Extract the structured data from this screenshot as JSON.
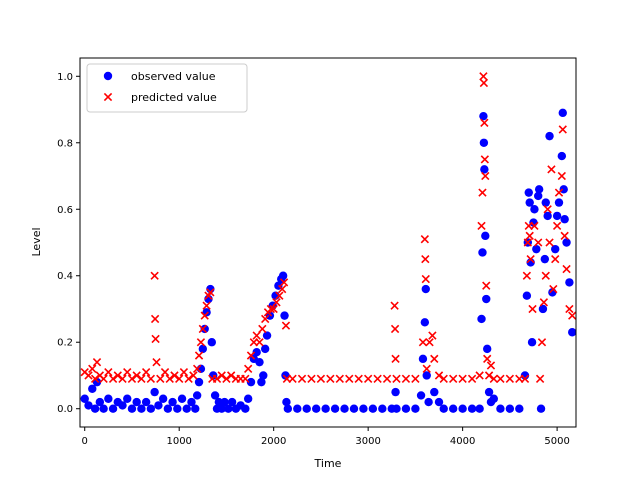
{
  "chart_data": {
    "type": "scatter",
    "xlabel": "Time",
    "ylabel": "Level",
    "xlim": [
      -50,
      5200
    ],
    "ylim": [
      -0.055,
      1.055
    ],
    "x_ticks": [
      0,
      1000,
      2000,
      3000,
      4000,
      5000
    ],
    "y_ticks": [
      0.0,
      0.2,
      0.4,
      0.6,
      0.8,
      1.0
    ],
    "x_tick_labels": [
      "0",
      "1000",
      "2000",
      "3000",
      "4000",
      "5000"
    ],
    "y_tick_labels": [
      "0.0",
      "0.2",
      "0.4",
      "0.6",
      "0.8",
      "1.0"
    ],
    "grid": false,
    "legend_position": "top-left",
    "series": [
      {
        "name": "observed value",
        "marker": "circle",
        "color": "#0000ff",
        "points": [
          [
            0,
            0.03
          ],
          [
            40,
            0.01
          ],
          [
            80,
            0.06
          ],
          [
            110,
            0.0
          ],
          [
            130,
            0.08
          ],
          [
            160,
            0.02
          ],
          [
            200,
            0.0
          ],
          [
            250,
            0.03
          ],
          [
            300,
            0.0
          ],
          [
            350,
            0.02
          ],
          [
            400,
            0.01
          ],
          [
            450,
            0.03
          ],
          [
            500,
            0.0
          ],
          [
            550,
            0.02
          ],
          [
            600,
            0.0
          ],
          [
            650,
            0.02
          ],
          [
            700,
            0.0
          ],
          [
            740,
            0.05
          ],
          [
            780,
            0.01
          ],
          [
            830,
            0.03
          ],
          [
            880,
            0.0
          ],
          [
            930,
            0.02
          ],
          [
            980,
            0.0
          ],
          [
            1030,
            0.03
          ],
          [
            1080,
            0.0
          ],
          [
            1130,
            0.02
          ],
          [
            1170,
            0.0
          ],
          [
            1190,
            0.04
          ],
          [
            1210,
            0.08
          ],
          [
            1230,
            0.12
          ],
          [
            1250,
            0.18
          ],
          [
            1270,
            0.24
          ],
          [
            1290,
            0.29
          ],
          [
            1310,
            0.33
          ],
          [
            1330,
            0.36
          ],
          [
            1345,
            0.2
          ],
          [
            1360,
            0.1
          ],
          [
            1380,
            0.04
          ],
          [
            1400,
            0.0
          ],
          [
            1420,
            0.02
          ],
          [
            1450,
            0.0
          ],
          [
            1480,
            0.02
          ],
          [
            1520,
            0.0
          ],
          [
            1560,
            0.02
          ],
          [
            1600,
            0.0
          ],
          [
            1650,
            0.01
          ],
          [
            1700,
            0.0
          ],
          [
            1730,
            0.03
          ],
          [
            1760,
            0.08
          ],
          [
            1790,
            0.15
          ],
          [
            1820,
            0.17
          ],
          [
            1850,
            0.14
          ],
          [
            1870,
            0.08
          ],
          [
            1890,
            0.1
          ],
          [
            1910,
            0.18
          ],
          [
            1930,
            0.22
          ],
          [
            1960,
            0.28
          ],
          [
            1990,
            0.31
          ],
          [
            2020,
            0.34
          ],
          [
            2050,
            0.37
          ],
          [
            2080,
            0.39
          ],
          [
            2100,
            0.4
          ],
          [
            2115,
            0.28
          ],
          [
            2125,
            0.1
          ],
          [
            2135,
            0.02
          ],
          [
            2150,
            0.0
          ],
          [
            2250,
            0.0
          ],
          [
            2350,
            0.0
          ],
          [
            2450,
            0.0
          ],
          [
            2550,
            0.0
          ],
          [
            2650,
            0.0
          ],
          [
            2750,
            0.0
          ],
          [
            2850,
            0.0
          ],
          [
            2950,
            0.0
          ],
          [
            3050,
            0.0
          ],
          [
            3150,
            0.0
          ],
          [
            3250,
            0.0
          ],
          [
            3290,
            0.05
          ],
          [
            3300,
            0.0
          ],
          [
            3400,
            0.0
          ],
          [
            3500,
            0.0
          ],
          [
            3560,
            0.04
          ],
          [
            3580,
            0.15
          ],
          [
            3600,
            0.26
          ],
          [
            3610,
            0.36
          ],
          [
            3620,
            0.1
          ],
          [
            3640,
            0.02
          ],
          [
            3700,
            0.05
          ],
          [
            3750,
            0.02
          ],
          [
            3800,
            0.0
          ],
          [
            3900,
            0.0
          ],
          [
            4000,
            0.0
          ],
          [
            4100,
            0.0
          ],
          [
            4180,
            0.0
          ],
          [
            4200,
            0.27
          ],
          [
            4210,
            0.47
          ],
          [
            4220,
            0.88
          ],
          [
            4225,
            0.8
          ],
          [
            4230,
            0.72
          ],
          [
            4240,
            0.52
          ],
          [
            4250,
            0.33
          ],
          [
            4260,
            0.18
          ],
          [
            4280,
            0.05
          ],
          [
            4300,
            0.02
          ],
          [
            4330,
            0.03
          ],
          [
            4400,
            0.0
          ],
          [
            4500,
            0.0
          ],
          [
            4600,
            0.0
          ],
          [
            4660,
            0.1
          ],
          [
            4680,
            0.34
          ],
          [
            4690,
            0.5
          ],
          [
            4700,
            0.65
          ],
          [
            4710,
            0.62
          ],
          [
            4720,
            0.44
          ],
          [
            4735,
            0.2
          ],
          [
            4750,
            0.56
          ],
          [
            4760,
            0.6
          ],
          [
            4780,
            0.48
          ],
          [
            4800,
            0.64
          ],
          [
            4810,
            0.66
          ],
          [
            4830,
            0.0
          ],
          [
            4850,
            0.3
          ],
          [
            4870,
            0.45
          ],
          [
            4880,
            0.62
          ],
          [
            4900,
            0.58
          ],
          [
            4920,
            0.82
          ],
          [
            4950,
            0.35
          ],
          [
            4980,
            0.48
          ],
          [
            5000,
            0.58
          ],
          [
            5020,
            0.62
          ],
          [
            5050,
            0.76
          ],
          [
            5060,
            0.89
          ],
          [
            5070,
            0.66
          ],
          [
            5080,
            0.57
          ],
          [
            5100,
            0.5
          ],
          [
            5130,
            0.38
          ],
          [
            5160,
            0.23
          ]
        ]
      },
      {
        "name": "predicted value",
        "marker": "x",
        "color": "#ff0000",
        "points": [
          [
            0,
            0.11
          ],
          [
            40,
            0.1
          ],
          [
            80,
            0.12
          ],
          [
            110,
            0.09
          ],
          [
            130,
            0.14
          ],
          [
            160,
            0.1
          ],
          [
            200,
            0.09
          ],
          [
            250,
            0.11
          ],
          [
            300,
            0.09
          ],
          [
            350,
            0.1
          ],
          [
            400,
            0.09
          ],
          [
            450,
            0.11
          ],
          [
            500,
            0.09
          ],
          [
            550,
            0.1
          ],
          [
            600,
            0.09
          ],
          [
            650,
            0.11
          ],
          [
            700,
            0.09
          ],
          [
            740,
            0.4
          ],
          [
            745,
            0.27
          ],
          [
            750,
            0.21
          ],
          [
            760,
            0.14
          ],
          [
            800,
            0.09
          ],
          [
            850,
            0.11
          ],
          [
            900,
            0.09
          ],
          [
            950,
            0.1
          ],
          [
            1000,
            0.09
          ],
          [
            1050,
            0.11
          ],
          [
            1100,
            0.09
          ],
          [
            1150,
            0.1
          ],
          [
            1190,
            0.12
          ],
          [
            1210,
            0.16
          ],
          [
            1230,
            0.2
          ],
          [
            1250,
            0.24
          ],
          [
            1270,
            0.28
          ],
          [
            1290,
            0.31
          ],
          [
            1310,
            0.34
          ],
          [
            1330,
            0.35
          ],
          [
            1350,
            0.09
          ],
          [
            1400,
            0.09
          ],
          [
            1450,
            0.1
          ],
          [
            1500,
            0.09
          ],
          [
            1550,
            0.1
          ],
          [
            1600,
            0.09
          ],
          [
            1650,
            0.09
          ],
          [
            1700,
            0.09
          ],
          [
            1730,
            0.12
          ],
          [
            1760,
            0.16
          ],
          [
            1790,
            0.2
          ],
          [
            1820,
            0.22
          ],
          [
            1850,
            0.2
          ],
          [
            1880,
            0.24
          ],
          [
            1910,
            0.27
          ],
          [
            1940,
            0.29
          ],
          [
            1970,
            0.3
          ],
          [
            2000,
            0.3
          ],
          [
            2030,
            0.32
          ],
          [
            2060,
            0.34
          ],
          [
            2090,
            0.36
          ],
          [
            2110,
            0.38
          ],
          [
            2130,
            0.25
          ],
          [
            2140,
            0.09
          ],
          [
            2200,
            0.09
          ],
          [
            2300,
            0.09
          ],
          [
            2400,
            0.09
          ],
          [
            2500,
            0.09
          ],
          [
            2600,
            0.09
          ],
          [
            2700,
            0.09
          ],
          [
            2800,
            0.09
          ],
          [
            2900,
            0.09
          ],
          [
            3000,
            0.09
          ],
          [
            3100,
            0.09
          ],
          [
            3200,
            0.09
          ],
          [
            3280,
            0.31
          ],
          [
            3285,
            0.24
          ],
          [
            3290,
            0.15
          ],
          [
            3300,
            0.09
          ],
          [
            3400,
            0.09
          ],
          [
            3500,
            0.09
          ],
          [
            3580,
            0.2
          ],
          [
            3600,
            0.51
          ],
          [
            3605,
            0.45
          ],
          [
            3610,
            0.39
          ],
          [
            3620,
            0.12
          ],
          [
            3650,
            0.2
          ],
          [
            3680,
            0.22
          ],
          [
            3700,
            0.15
          ],
          [
            3750,
            0.1
          ],
          [
            3800,
            0.09
          ],
          [
            3900,
            0.09
          ],
          [
            4000,
            0.09
          ],
          [
            4100,
            0.09
          ],
          [
            4180,
            0.1
          ],
          [
            4200,
            0.55
          ],
          [
            4210,
            0.65
          ],
          [
            4220,
            1.0
          ],
          [
            4225,
            0.98
          ],
          [
            4230,
            0.86
          ],
          [
            4235,
            0.75
          ],
          [
            4240,
            0.7
          ],
          [
            4250,
            0.37
          ],
          [
            4260,
            0.15
          ],
          [
            4280,
            0.1
          ],
          [
            4300,
            0.13
          ],
          [
            4330,
            0.09
          ],
          [
            4400,
            0.09
          ],
          [
            4500,
            0.09
          ],
          [
            4600,
            0.09
          ],
          [
            4660,
            0.09
          ],
          [
            4680,
            0.4
          ],
          [
            4690,
            0.5
          ],
          [
            4700,
            0.55
          ],
          [
            4710,
            0.52
          ],
          [
            4720,
            0.45
          ],
          [
            4740,
            0.3
          ],
          [
            4760,
            0.55
          ],
          [
            4800,
            0.5
          ],
          [
            4820,
            0.09
          ],
          [
            4840,
            0.2
          ],
          [
            4860,
            0.32
          ],
          [
            4880,
            0.4
          ],
          [
            4900,
            0.6
          ],
          [
            4920,
            0.5
          ],
          [
            4940,
            0.72
          ],
          [
            4960,
            0.36
          ],
          [
            4980,
            0.45
          ],
          [
            5000,
            0.55
          ],
          [
            5020,
            0.65
          ],
          [
            5050,
            0.7
          ],
          [
            5060,
            0.84
          ],
          [
            5080,
            0.52
          ],
          [
            5100,
            0.42
          ],
          [
            5130,
            0.3
          ],
          [
            5160,
            0.28
          ]
        ]
      }
    ]
  }
}
